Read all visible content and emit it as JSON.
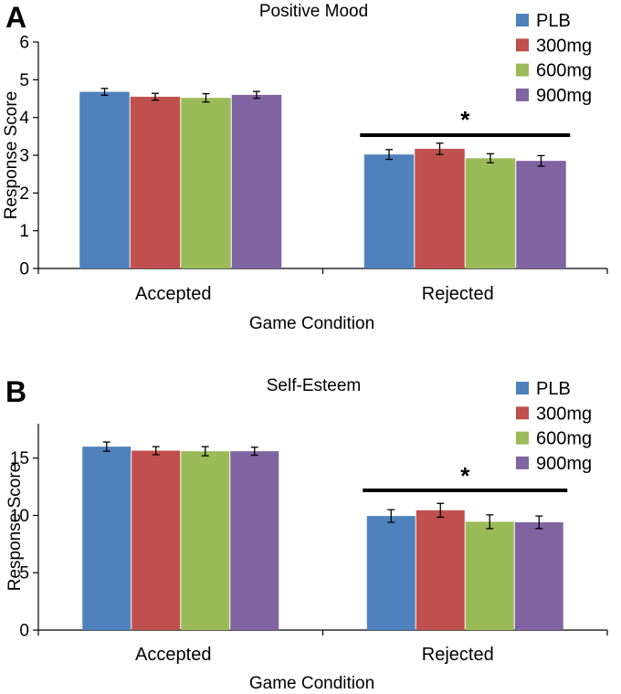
{
  "chart_data": [
    {
      "panel_label": "A",
      "type": "bar",
      "title": "Positive Mood",
      "xlabel": "Game Condition",
      "ylabel": "Response Score",
      "categories": [
        "Accepted",
        "Rejected"
      ],
      "ylim": [
        0,
        6
      ],
      "yticks": [
        0,
        1,
        2,
        3,
        4,
        5,
        6
      ],
      "series": [
        {
          "name": "PLB",
          "color": "#4f81bd",
          "values": [
            4.68,
            3.02
          ],
          "errors": [
            0.09,
            0.13
          ]
        },
        {
          "name": "300mg",
          "color": "#c0504d",
          "values": [
            4.55,
            3.17
          ],
          "errors": [
            0.09,
            0.15
          ]
        },
        {
          "name": "600mg",
          "color": "#9bbb59",
          "values": [
            4.52,
            2.92
          ],
          "errors": [
            0.11,
            0.12
          ]
        },
        {
          "name": "900mg",
          "color": "#8064a2",
          "values": [
            4.6,
            2.85
          ],
          "errors": [
            0.09,
            0.14
          ]
        }
      ],
      "significance": {
        "category": "Rejected",
        "marker": "*"
      },
      "legend_position": "top-right",
      "grid": false
    },
    {
      "panel_label": "B",
      "type": "bar",
      "title": "Self-Esteem",
      "xlabel": "Game Condition",
      "ylabel": "Response Score",
      "categories": [
        "Accepted",
        "Rejected"
      ],
      "ylim": [
        0,
        18
      ],
      "yticks": [
        0,
        5,
        10,
        15
      ],
      "series": [
        {
          "name": "PLB",
          "color": "#4f81bd",
          "values": [
            16.0,
            9.95
          ],
          "errors": [
            0.4,
            0.55
          ]
        },
        {
          "name": "300mg",
          "color": "#c0504d",
          "values": [
            15.65,
            10.45
          ],
          "errors": [
            0.35,
            0.6
          ]
        },
        {
          "name": "600mg",
          "color": "#9bbb59",
          "values": [
            15.6,
            9.45
          ],
          "errors": [
            0.4,
            0.6
          ]
        },
        {
          "name": "900mg",
          "color": "#8064a2",
          "values": [
            15.6,
            9.4
          ],
          "errors": [
            0.35,
            0.55
          ]
        }
      ],
      "significance": {
        "category": "Rejected",
        "marker": "*"
      },
      "legend_position": "top-right",
      "grid": false
    }
  ]
}
